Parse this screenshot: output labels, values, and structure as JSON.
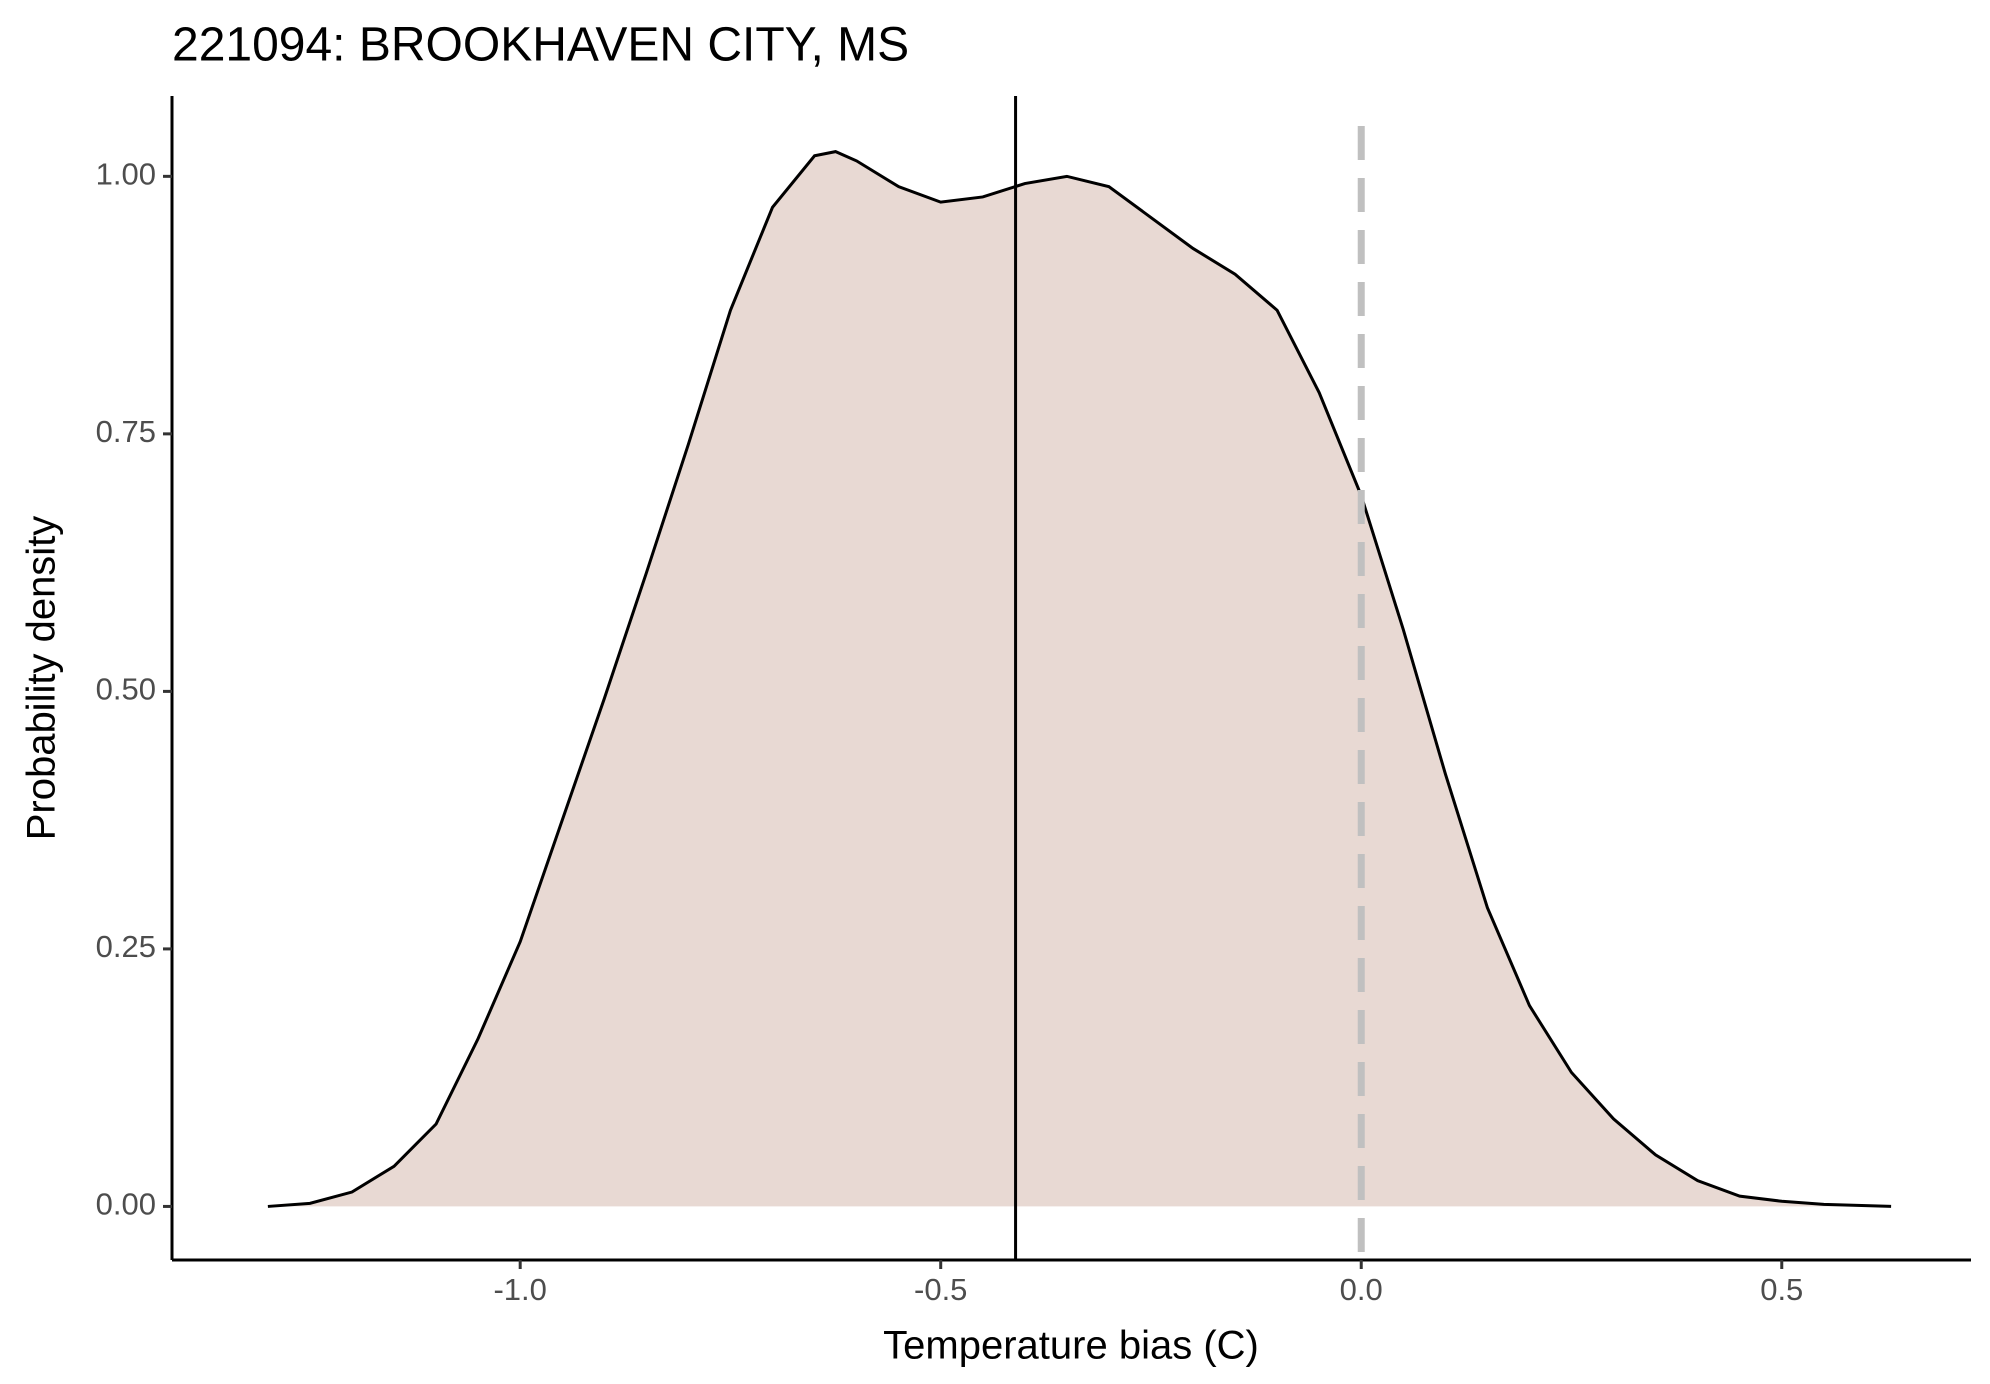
{
  "chart_data": {
    "type": "density",
    "title": "221094: BROOKHAVEN CITY, MS",
    "x_label": "Temperature bias (C)",
    "y_label": "Probability density",
    "x": [
      -1.3,
      -1.25,
      -1.2,
      -1.15,
      -1.1,
      -1.05,
      -1.0,
      -0.95,
      -0.9,
      -0.85,
      -0.8,
      -0.75,
      -0.7,
      -0.65,
      -0.625,
      -0.6,
      -0.55,
      -0.5,
      -0.45,
      -0.4,
      -0.35,
      -0.3,
      -0.25,
      -0.2,
      -0.15,
      -0.1,
      -0.05,
      0.0,
      0.05,
      0.1,
      0.15,
      0.2,
      0.25,
      0.3,
      0.35,
      0.4,
      0.45,
      0.5,
      0.55,
      0.63
    ],
    "values": [
      0.0,
      0.003,
      0.014,
      0.039,
      0.08,
      0.163,
      0.257,
      0.375,
      0.493,
      0.615,
      0.74,
      0.87,
      0.97,
      1.02,
      1.024,
      1.015,
      0.99,
      0.975,
      0.98,
      0.993,
      1.0,
      0.99,
      0.96,
      0.93,
      0.905,
      0.87,
      0.79,
      0.69,
      0.56,
      0.42,
      0.29,
      0.195,
      0.13,
      0.085,
      0.05,
      0.025,
      0.01,
      0.005,
      0.002,
      0.0
    ],
    "fill_color": "#e8d9d3",
    "line_color": "#000000",
    "mean_line": -0.411,
    "mean_line_color": "#000000",
    "reference_line": 0,
    "reference_line_color": "#c0c0c0",
    "reference_line_dashed": true,
    "xlim": [
      -1.414,
      0.725
    ],
    "ylim": [
      -0.052,
      1.078
    ],
    "xticks": [
      {
        "value": -1.0,
        "label": "-1.0"
      },
      -0.5,
      {
        "value": 0.0,
        "label": "0.0"
      },
      0.5
    ],
    "yticks": [
      {
        "value": 0,
        "label": "0.00"
      },
      {
        "value": 0.25,
        "label": "0.25"
      },
      {
        "value": 0.5,
        "label": "0.50"
      },
      {
        "value": 0.75,
        "label": "0.75"
      },
      {
        "value": 1.0,
        "label": "1.00"
      }
    ],
    "grid": false
  }
}
